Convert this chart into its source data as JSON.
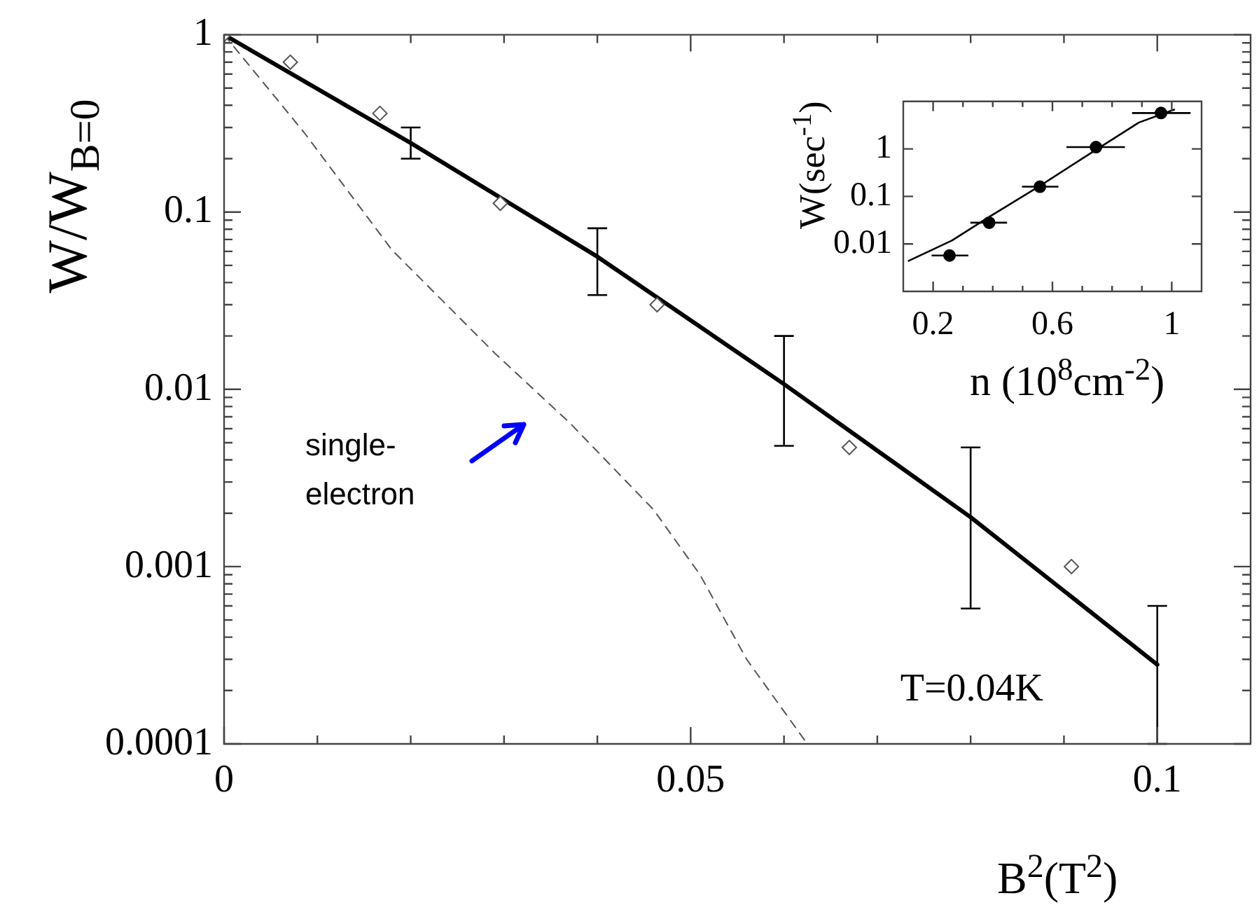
{
  "chart_data": [
    {
      "type": "line",
      "xlabel": "B$^{2}$(T$^{2}$)",
      "ylabel": "W/W$_{B=0}$",
      "log": "y",
      "grid": false,
      "legend": false,
      "xlim": [
        0,
        0.11
      ],
      "ylim": [
        0.0001,
        1
      ],
      "xticks": [
        0,
        {
          "value": 0.01,
          "label": null
        },
        {
          "value": 0.02,
          "label": null
        },
        {
          "value": 0.03,
          "label": null
        },
        {
          "value": 0.04,
          "label": null
        },
        0.05,
        {
          "value": 0.06,
          "label": null
        },
        {
          "value": 0.07,
          "label": null
        },
        {
          "value": 0.08,
          "label": null
        },
        {
          "value": 0.09,
          "label": null
        },
        0.1
      ],
      "yticks": [
        0.0001,
        {
          "value": 0.0002,
          "label": null
        },
        {
          "value": 0.0003,
          "label": null
        },
        {
          "value": 0.0004,
          "label": null
        },
        {
          "value": 0.0005,
          "label": null
        },
        {
          "value": 0.0006,
          "label": null
        },
        {
          "value": 0.0007,
          "label": null
        },
        {
          "value": 0.0008,
          "label": null
        },
        {
          "value": 0.0009,
          "label": null
        },
        0.001,
        {
          "value": 0.002,
          "label": null
        },
        {
          "value": 0.003,
          "label": null
        },
        {
          "value": 0.004,
          "label": null
        },
        {
          "value": 0.005,
          "label": null
        },
        {
          "value": 0.006,
          "label": null
        },
        {
          "value": 0.007,
          "label": null
        },
        {
          "value": 0.008,
          "label": null
        },
        {
          "value": 0.009,
          "label": null
        },
        0.01,
        {
          "value": 0.02,
          "label": null
        },
        {
          "value": 0.03,
          "label": null
        },
        {
          "value": 0.04,
          "label": null
        },
        {
          "value": 0.05,
          "label": null
        },
        {
          "value": 0.06,
          "label": null
        },
        {
          "value": 0.07,
          "label": null
        },
        {
          "value": 0.08,
          "label": null
        },
        {
          "value": 0.09,
          "label": null
        },
        0.1,
        {
          "value": 0.2,
          "label": null
        },
        {
          "value": 0.3,
          "label": null
        },
        {
          "value": 0.4,
          "label": null
        },
        {
          "value": 0.5,
          "label": null
        },
        {
          "value": 0.6,
          "label": null
        },
        {
          "value": 0.7,
          "label": null
        },
        {
          "value": 0.8,
          "label": null
        },
        {
          "value": 0.9,
          "label": null
        },
        1
      ],
      "annotations": [
        "single-electron",
        "T=0.04K"
      ],
      "series": [
        {
          "type": "scatter",
          "color": "#555555",
          "marker": "diamond",
          "x": [
            0,
            0.0071,
            0.0167,
            0.0296,
            0.0464,
            0.067,
            0.0908
          ],
          "values": [
            1,
            0.7,
            0.36,
            0.112,
            0.03,
            0.0047,
            0.001
          ]
        },
        {
          "color": "#555555",
          "marker": "none",
          "line_style": "dashed",
          "x": [
            0,
            0.0086,
            0.018,
            0.029,
            0.037,
            0.046,
            0.051,
            0.056,
            0.0625
          ],
          "values": [
            1,
            0.28,
            0.061,
            0.016,
            0.0065,
            0.0021,
            0.0009,
            0.0003,
            0.0001
          ]
        },
        {
          "color": "#000000",
          "marker": "none",
          "line_style": "solid",
          "x": [
            0,
            0.02,
            0.04,
            0.06,
            0.08,
            0.1
          ],
          "values": [
            1,
            0.245,
            0.056,
            0.0107,
            0.0019,
            0.00028
          ],
          "errors": [
            null,
            [
              0.2,
              0.3
            ],
            [
              0.034,
              0.081
            ],
            [
              0.0048,
              0.02
            ],
            [
              0.00058,
              0.0047
            ],
            [
              0.0001,
              0.0006
            ]
          ]
        }
      ]
    },
    {
      "type": "scatter",
      "xlabel": "n (10$^{8}$cm$^{-2}$)",
      "ylabel": "W(sec$^{-1}$)",
      "log": "y",
      "grid": false,
      "legend": false,
      "xlim": [
        0.1,
        1.1
      ],
      "ylim": [
        0.001,
        10
      ],
      "xticks": [
        0.2,
        {
          "value": 0.3,
          "label": null
        },
        {
          "value": 0.4,
          "label": null
        },
        {
          "value": 0.5,
          "label": null
        },
        0.6,
        {
          "value": 0.7,
          "label": null
        },
        {
          "value": 0.8,
          "label": null
        },
        {
          "value": 0.9,
          "label": null
        },
        1
      ],
      "yticks": [
        0.01,
        0.1,
        1
      ],
      "series": [
        {
          "color": "#000000",
          "marker": "circle",
          "x": [
            0.255,
            0.388,
            0.558,
            0.746,
            0.964
          ],
          "values": [
            0.0057,
            0.028,
            0.16,
            1.09,
            5.7
          ],
          "xerrors": [
            [
              0.195,
              0.318
            ],
            [
              0.325,
              0.448
            ],
            [
              0.498,
              0.62
            ],
            [
              0.647,
              0.843
            ],
            [
              0.867,
              1.063
            ]
          ]
        },
        {
          "type": "line",
          "color": "#000000",
          "marker": "none",
          "line_style": "solid",
          "x": [
            0.118,
            0.263,
            0.388,
            0.56,
            0.733,
            0.89,
            1.008
          ],
          "values": [
            0.0044,
            0.0118,
            0.037,
            0.17,
            0.85,
            3.6,
            6.7
          ]
        }
      ]
    }
  ]
}
